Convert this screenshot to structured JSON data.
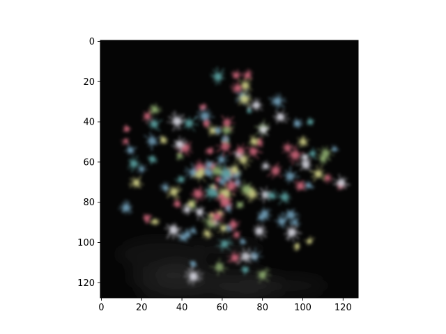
{
  "image": {
    "subject": "fireworks-burst",
    "palette": {
      "background": "#050505",
      "smoke": "#2a2a2a",
      "pink": "#c86478",
      "blue": "#6e9bb4",
      "teal": "#5aa0a0",
      "green": "#8caa6e",
      "yellow": "#c8c882",
      "white": "#d2d2dc"
    }
  },
  "axes": {
    "xlim": [
      -0.5,
      127.5
    ],
    "ylim": [
      127.5,
      -0.5
    ],
    "x_ticks": [
      {
        "value": 0,
        "label": "0"
      },
      {
        "value": 20,
        "label": "20"
      },
      {
        "value": 40,
        "label": "40"
      },
      {
        "value": 60,
        "label": "60"
      },
      {
        "value": 80,
        "label": "80"
      },
      {
        "value": 100,
        "label": "100"
      },
      {
        "value": 120,
        "label": "120"
      }
    ],
    "y_ticks": [
      {
        "value": 0,
        "label": "0"
      },
      {
        "value": 20,
        "label": "20"
      },
      {
        "value": 40,
        "label": "40"
      },
      {
        "value": 60,
        "label": "60"
      },
      {
        "value": 80,
        "label": "80"
      },
      {
        "value": 100,
        "label": "100"
      },
      {
        "value": 120,
        "label": "120"
      }
    ]
  }
}
